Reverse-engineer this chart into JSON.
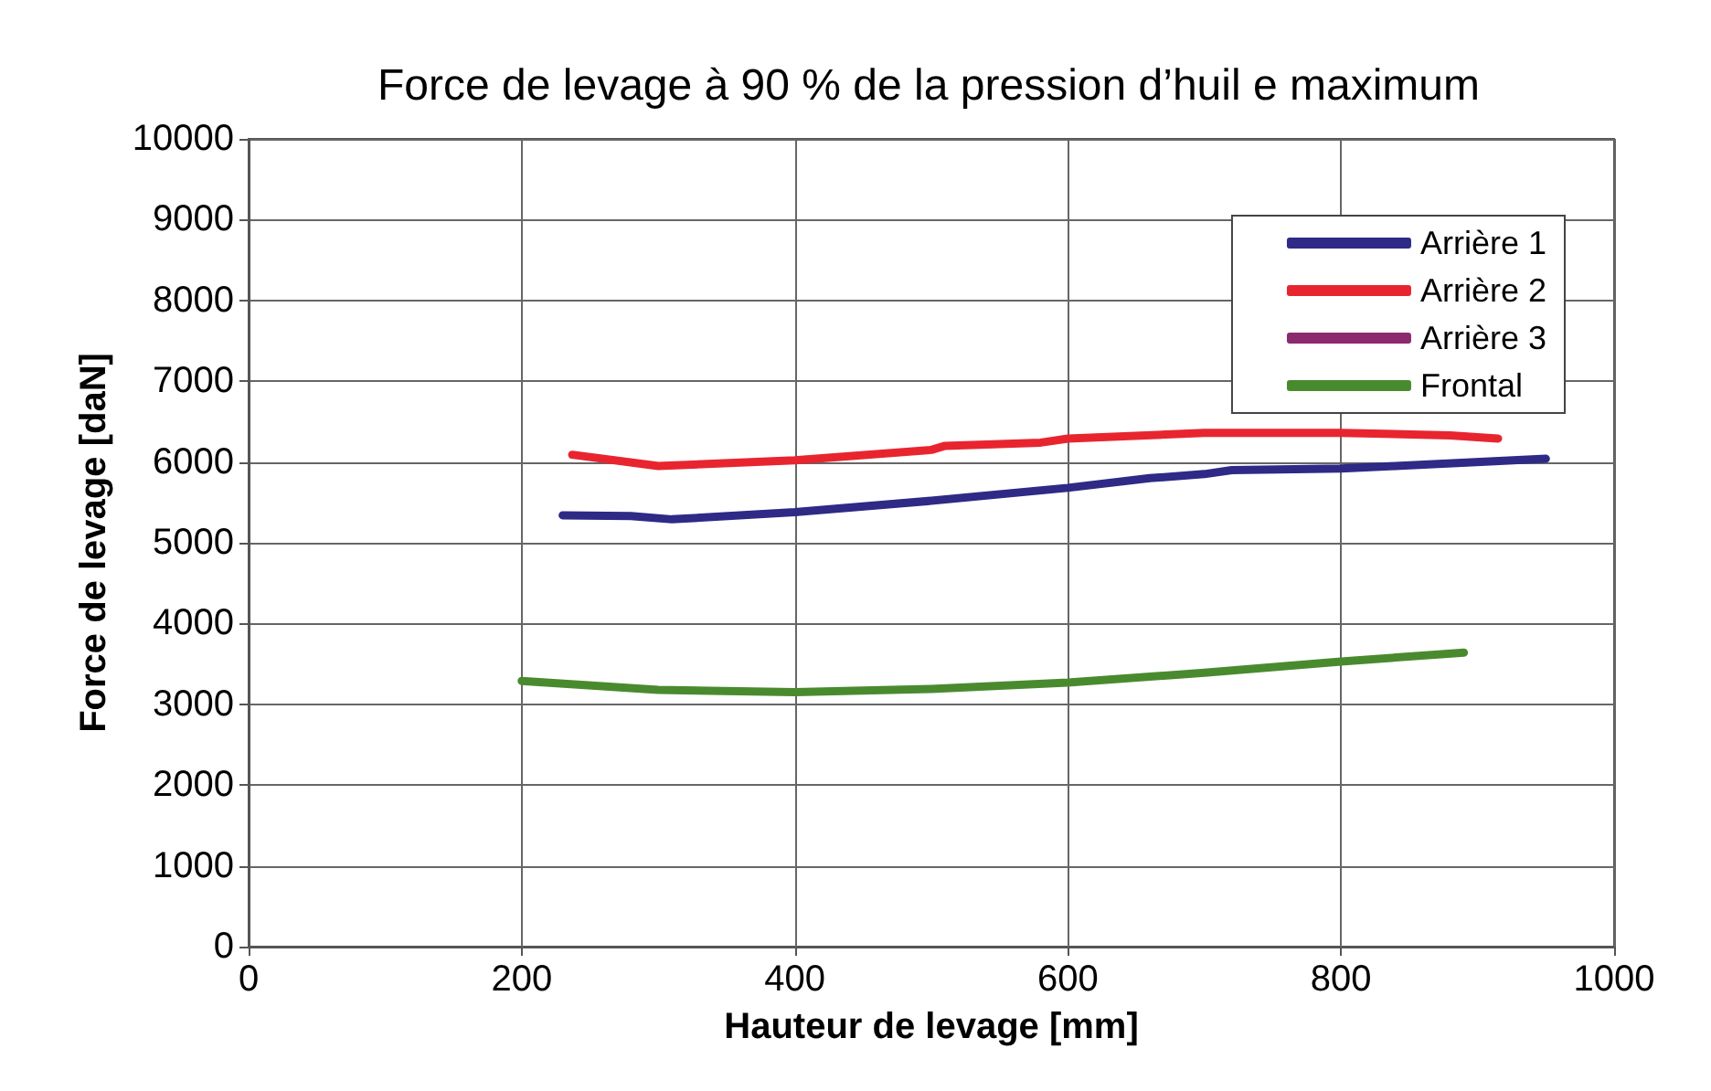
{
  "chart_data": {
    "type": "line",
    "title": "Force de levage à 90 % de la pression d’huil e maximum",
    "xlabel": "Hauteur de levage [mm]",
    "ylabel": "Force de levage [daN]",
    "xlim": [
      0,
      1000
    ],
    "xticks": [
      0,
      200,
      400,
      600,
      800,
      1000
    ],
    "ylim": [
      0,
      10000
    ],
    "yticks": [
      0,
      1000,
      2000,
      3000,
      4000,
      5000,
      6000,
      7000,
      8000,
      9000,
      10000
    ],
    "grid": true,
    "legend": "top right",
    "marker": "none",
    "line_style": "solid",
    "series": [
      {
        "name": "Arrière 1",
        "color": "#2e2a86",
        "x": [
          230,
          280,
          310,
          400,
          500,
          600,
          660,
          700,
          720,
          800,
          840,
          950
        ],
        "values": [
          5340,
          5330,
          5290,
          5380,
          5520,
          5680,
          5800,
          5850,
          5900,
          5920,
          5950,
          6040
        ]
      },
      {
        "name": "Arrière 2",
        "color": "#e8252f",
        "x": [
          237,
          300,
          400,
          500,
          510,
          580,
          600,
          700,
          800,
          880,
          915
        ],
        "values": [
          6090,
          5950,
          6020,
          6150,
          6200,
          6240,
          6290,
          6360,
          6360,
          6330,
          6290
        ]
      },
      {
        "name": "Arrière 3",
        "color": "#8b2a6f"
      },
      {
        "name": "Frontal",
        "color": "#4a8a2f",
        "x": [
          200,
          300,
          400,
          500,
          600,
          700,
          800,
          890
        ],
        "values": [
          3290,
          3180,
          3150,
          3190,
          3270,
          3390,
          3530,
          3640
        ]
      }
    ]
  }
}
